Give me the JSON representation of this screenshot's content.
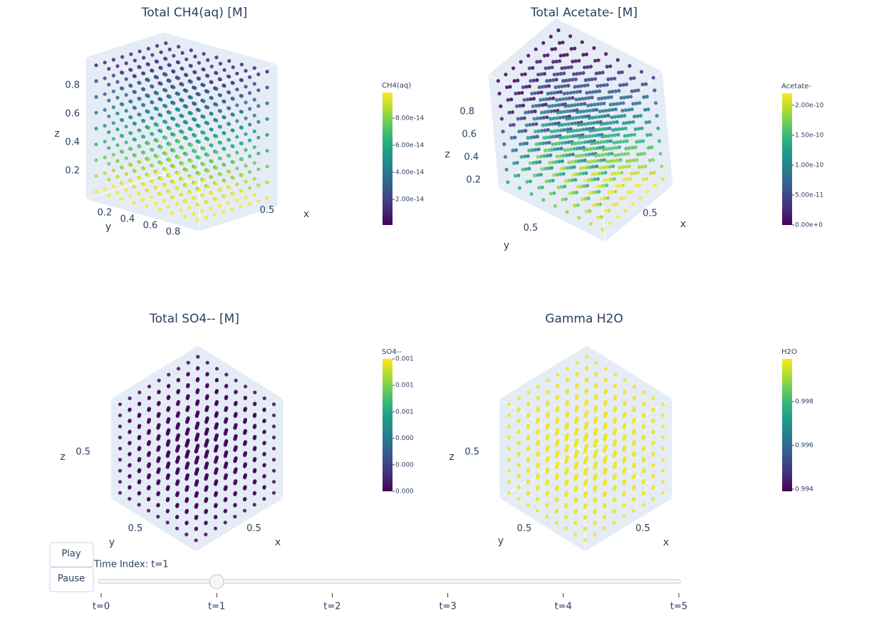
{
  "chart_data": [
    {
      "type": "scatter3d",
      "title": "Total CH4(aq) [M]",
      "colorbar": {
        "title": "CH4(aq)",
        "clim": [
          1e-15,
          9.9e-14
        ],
        "ticks": [
          {
            "value": 2e-14,
            "label": "2.00e-14"
          },
          {
            "value": 4e-14,
            "label": "4.00e-14"
          },
          {
            "value": 6e-14,
            "label": "6.00e-14"
          },
          {
            "value": 8e-14,
            "label": "8.00e-14"
          }
        ]
      },
      "xaxis": {
        "title": "x",
        "ticks": [
          0.5
        ]
      },
      "yaxis": {
        "title": "y",
        "ticks": [
          0.2,
          0.4,
          0.6,
          0.8
        ]
      },
      "zaxis": {
        "title": "z",
        "ticks": [
          0.2,
          0.4,
          0.6,
          0.8
        ]
      }
    },
    {
      "type": "scatter3d",
      "title": "Total Acetate- [M]",
      "colorbar": {
        "title": "Acetate-",
        "clim": [
          0,
          2.2e-10
        ],
        "ticks": [
          {
            "value": 0,
            "label": "0.00e+0"
          },
          {
            "value": 5e-11,
            "label": "5.00e-11"
          },
          {
            "value": 1e-10,
            "label": "1.00e-10"
          },
          {
            "value": 1.5e-10,
            "label": "1.50e-10"
          },
          {
            "value": 2e-10,
            "label": "2.00e-10"
          }
        ]
      },
      "xaxis": {
        "title": "x",
        "ticks": [
          0.5
        ]
      },
      "yaxis": {
        "title": "y",
        "ticks": [
          0.5
        ]
      },
      "zaxis": {
        "title": "z",
        "ticks": [
          0.2,
          0.4,
          0.6,
          0.8
        ]
      }
    },
    {
      "type": "scatter3d",
      "title": "Total SO4-- [M]",
      "colorbar": {
        "title": "SO4--",
        "clim": [
          0,
          0.001
        ],
        "ticks": [
          {
            "value": 0,
            "label": "0.000"
          },
          {
            "value": 0.0002,
            "label": "0.000"
          },
          {
            "value": 0.0004,
            "label": "0.000"
          },
          {
            "value": 0.0006,
            "label": "0.001"
          },
          {
            "value": 0.0008,
            "label": "0.001"
          },
          {
            "value": 0.001,
            "label": "0.001"
          }
        ]
      },
      "xaxis": {
        "title": "x",
        "ticks": [
          0.5
        ]
      },
      "yaxis": {
        "title": "y",
        "ticks": [
          0.5
        ]
      },
      "zaxis": {
        "title": "z",
        "ticks": [
          0.5
        ]
      }
    },
    {
      "type": "scatter3d",
      "title": "Gamma H2O",
      "colorbar": {
        "title": "H2O",
        "clim": [
          0.9939,
          0.99995
        ],
        "ticks": [
          {
            "value": 0.994,
            "label": "0.994"
          },
          {
            "value": 0.996,
            "label": "0.996"
          },
          {
            "value": 0.998,
            "label": "0.998"
          }
        ]
      },
      "xaxis": {
        "title": "x",
        "ticks": [
          0.5
        ]
      },
      "yaxis": {
        "title": "y",
        "ticks": [
          0.5
        ]
      },
      "zaxis": {
        "title": "z",
        "ticks": [
          0.5
        ]
      }
    }
  ],
  "controls": {
    "buttons": [
      "Play",
      "Pause"
    ],
    "slider": {
      "label": "Time Index: t=1",
      "active": 1,
      "steps": [
        "t=0",
        "t=1",
        "t=2",
        "t=3",
        "t=4",
        "t=5"
      ]
    }
  }
}
